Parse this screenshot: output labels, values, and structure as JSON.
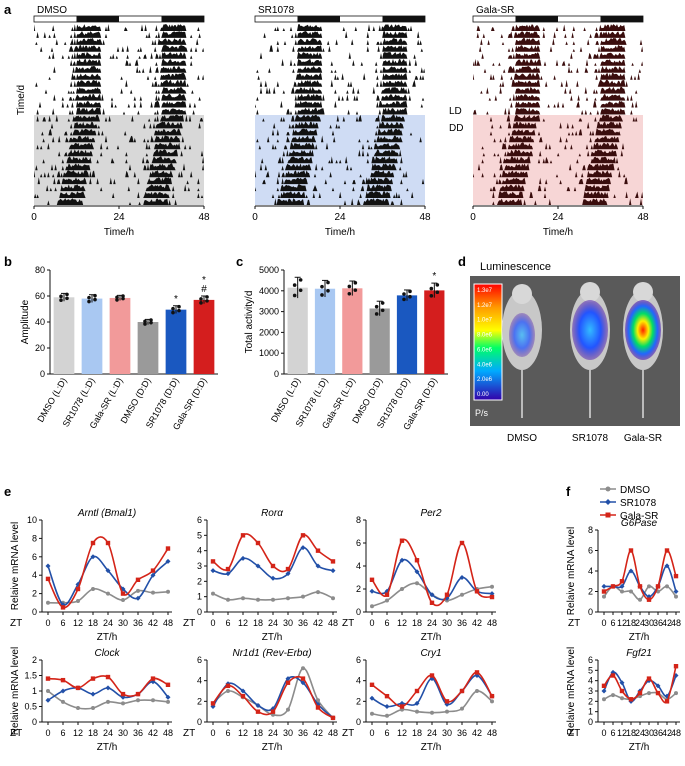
{
  "panel_letters": {
    "a": "a",
    "b": "b",
    "c": "c",
    "d": "d",
    "e": "e",
    "f": "f"
  },
  "actograms": {
    "ylabel": "Time/d",
    "xlabel": "Time/h",
    "ticks": [
      "0",
      "24",
      "48"
    ],
    "ld_label": "LD",
    "dd_label": "DD",
    "groups": [
      {
        "title": "DMSO",
        "tint": "#d8d8d8",
        "ink": "#111111"
      },
      {
        "title": "SR1078",
        "tint": "#cfdcf4",
        "ink": "#111111"
      },
      {
        "title": "Gala-SR",
        "tint": "#f7d6d6",
        "ink": "#3a0d0d"
      }
    ]
  },
  "colors": {
    "DMSO": "#8c8c8c",
    "SR1078": "#2250a8",
    "Gala-SR": "#d42418"
  },
  "legend": [
    "DMSO",
    "SR1078",
    "Gala-SR"
  ],
  "luminescence": {
    "title": "Luminescence",
    "scale_ticks": [
      "1.3e7",
      "1.2e7",
      "1.0e7",
      "8.0e6",
      "6.0e6",
      "4.0e6",
      "2.0e6",
      "0.00"
    ],
    "unit": "P/s",
    "mice": [
      "DMSO",
      "SR1078",
      "Gala-SR"
    ]
  },
  "chart_data": [
    {
      "id": "b",
      "type": "bar",
      "ylabel": "Amplitude",
      "ylim": [
        0,
        80
      ],
      "yticks": [
        "0",
        "20",
        "40",
        "60",
        "80"
      ],
      "categories": [
        "DMSO (L:D)",
        "SR1078 (L:D)",
        "Gala-SR (L:D)",
        "DMSO (D:D)",
        "SR1078 (D:D)",
        "Gala-SR (D:D)"
      ],
      "values": [
        59,
        58,
        58.5,
        40,
        49.5,
        57
      ],
      "errors": [
        3,
        3,
        2,
        2,
        3,
        3
      ],
      "bar_colors": [
        "#d3d3d3",
        "#a9c8f2",
        "#f29a9a",
        "#9a9a9a",
        "#1a58c0",
        "#d41e1e"
      ],
      "annotations": [
        "",
        "",
        "",
        "",
        "*",
        "*\n#"
      ]
    },
    {
      "id": "c",
      "type": "bar",
      "ylabel": "Total activity/d",
      "ylim": [
        0,
        5000
      ],
      "yticks": [
        "0",
        "1000",
        "2000",
        "3000",
        "4000",
        "5000"
      ],
      "categories": [
        "DMSO (L:D)",
        "SR1078 (L:D)",
        "Gala-SR (L:D)",
        "DMSO (D:D)",
        "SR1078 (D:D)",
        "Gala-SR (D:D)"
      ],
      "values": [
        4150,
        4100,
        4120,
        3150,
        3780,
        4020
      ],
      "errors": [
        500,
        400,
        350,
        350,
        260,
        350
      ],
      "bar_colors": [
        "#d3d3d3",
        "#a9c8f2",
        "#f29a9a",
        "#9a9a9a",
        "#1a58c0",
        "#d41e1e"
      ],
      "annotations": [
        "",
        "",
        "",
        "",
        "",
        "*"
      ]
    },
    {
      "id": "e1",
      "type": "line",
      "title": "Arntl (Bmal1)",
      "ylabel": "Relaive mRNA level",
      "xlabel": "ZT/h",
      "ylim": [
        0,
        10
      ],
      "yticks": [
        "0",
        "2",
        "4",
        "6",
        "8",
        "10"
      ],
      "x": [
        0,
        6,
        12,
        18,
        24,
        30,
        36,
        42,
        48
      ],
      "series": [
        {
          "name": "DMSO",
          "values": [
            1.0,
            1.0,
            1.2,
            2.5,
            2.0,
            1.3,
            2.3,
            2.1,
            2.2
          ]
        },
        {
          "name": "SR1078",
          "values": [
            5.0,
            0.8,
            3.0,
            6.0,
            4.5,
            2.5,
            1.5,
            4.0,
            5.5
          ]
        },
        {
          "name": "Gala-SR",
          "values": [
            3.6,
            0.5,
            2.5,
            7.5,
            7.5,
            2.0,
            3.5,
            4.5,
            6.9
          ]
        }
      ]
    },
    {
      "id": "e2",
      "type": "line",
      "title": "Rorα",
      "ylabel": "",
      "xlabel": "ZT/h",
      "ylim": [
        0,
        6
      ],
      "yticks": [
        "0",
        "1",
        "2",
        "3",
        "4",
        "5",
        "6"
      ],
      "x": [
        0,
        6,
        12,
        18,
        24,
        30,
        36,
        42,
        48
      ],
      "series": [
        {
          "name": "DMSO",
          "values": [
            1.2,
            0.8,
            0.9,
            0.8,
            0.8,
            0.9,
            1.0,
            1.3,
            0.9
          ]
        },
        {
          "name": "SR1078",
          "values": [
            2.7,
            2.5,
            3.5,
            3.0,
            2.2,
            2.5,
            4.2,
            3.0,
            2.7
          ]
        },
        {
          "name": "Gala-SR",
          "values": [
            3.3,
            2.8,
            5.0,
            4.5,
            3.0,
            2.8,
            5.0,
            4.0,
            3.3
          ]
        }
      ]
    },
    {
      "id": "e3",
      "type": "line",
      "title": "Per2",
      "ylabel": "",
      "xlabel": "ZT/h",
      "ylim": [
        0,
        8
      ],
      "yticks": [
        "0",
        "2",
        "4",
        "6",
        "8"
      ],
      "x": [
        0,
        6,
        12,
        18,
        24,
        30,
        36,
        42,
        48
      ],
      "series": [
        {
          "name": "DMSO",
          "values": [
            0.5,
            1.0,
            2.0,
            2.5,
            1.5,
            1.0,
            1.5,
            2.0,
            2.2
          ]
        },
        {
          "name": "SR1078",
          "values": [
            1.8,
            1.8,
            4.5,
            3.5,
            1.5,
            1.2,
            3.0,
            1.8,
            1.6
          ]
        },
        {
          "name": "Gala-SR",
          "values": [
            2.8,
            1.5,
            6.2,
            4.5,
            0.8,
            1.5,
            6.0,
            1.8,
            1.3
          ]
        }
      ]
    },
    {
      "id": "e4",
      "type": "line",
      "title": "Clock",
      "ylabel": "Relaive mRNA level",
      "xlabel": "ZT/h",
      "ylim": [
        0,
        2
      ],
      "yticks": [
        "0",
        "0.5",
        "1",
        "1.5",
        "2"
      ],
      "x": [
        0,
        6,
        12,
        18,
        24,
        30,
        36,
        42,
        48
      ],
      "series": [
        {
          "name": "DMSO",
          "values": [
            1.0,
            0.65,
            0.45,
            0.45,
            0.65,
            0.6,
            0.7,
            0.7,
            0.65
          ]
        },
        {
          "name": "SR1078",
          "values": [
            0.7,
            1.0,
            1.1,
            0.9,
            1.1,
            0.8,
            0.9,
            1.3,
            0.8
          ]
        },
        {
          "name": "Gala-SR",
          "values": [
            1.4,
            1.35,
            1.1,
            1.4,
            1.45,
            0.9,
            0.9,
            1.4,
            1.2
          ]
        }
      ]
    },
    {
      "id": "e5",
      "type": "line",
      "title": "Nr1d1 (Rev-Erbα)",
      "ylabel": "",
      "xlabel": "ZT/h",
      "ylim": [
        0,
        6
      ],
      "yticks": [
        "0",
        "2",
        "4",
        "6"
      ],
      "x": [
        0,
        6,
        12,
        18,
        24,
        30,
        36,
        42,
        48
      ],
      "series": [
        {
          "name": "DMSO",
          "values": [
            1.8,
            3.0,
            2.4,
            1.6,
            0.7,
            1.2,
            5.2,
            2.1,
            0.4
          ]
        },
        {
          "name": "SR1078",
          "values": [
            1.5,
            3.7,
            3.0,
            1.6,
            1.3,
            4.2,
            3.8,
            1.7,
            0.4
          ]
        },
        {
          "name": "Gala-SR",
          "values": [
            1.8,
            3.5,
            2.5,
            1.0,
            1.0,
            3.8,
            4.2,
            1.4,
            0.4
          ]
        }
      ]
    },
    {
      "id": "e6",
      "type": "line",
      "title": "Cry1",
      "ylabel": "",
      "xlabel": "ZT/h",
      "ylim": [
        0,
        6
      ],
      "yticks": [
        "0",
        "2",
        "4",
        "6"
      ],
      "x": [
        0,
        6,
        12,
        18,
        24,
        30,
        36,
        42,
        48
      ],
      "series": [
        {
          "name": "DMSO",
          "values": [
            0.8,
            0.6,
            1.2,
            1.0,
            0.9,
            1.0,
            1.3,
            3.0,
            2.0
          ]
        },
        {
          "name": "SR1078",
          "values": [
            2.3,
            1.5,
            1.8,
            1.8,
            4.2,
            1.7,
            3.0,
            4.5,
            2.5
          ]
        },
        {
          "name": "Gala-SR",
          "values": [
            3.6,
            2.5,
            1.5,
            3.0,
            4.5,
            2.0,
            3.0,
            4.8,
            2.5
          ]
        }
      ]
    },
    {
      "id": "f1",
      "type": "line",
      "title": "G6Pase",
      "ylabel": "Relaive mRNA level",
      "xlabel": "ZT/h",
      "ylim": [
        0,
        8
      ],
      "yticks": [
        "0",
        "2",
        "4",
        "6",
        "8"
      ],
      "x": [
        0,
        6,
        12,
        18,
        24,
        30,
        36,
        42,
        48
      ],
      "series": [
        {
          "name": "DMSO",
          "values": [
            1.5,
            2.5,
            2.0,
            2.0,
            1.2,
            2.5,
            2.0,
            2.5,
            1.5
          ]
        },
        {
          "name": "SR1078",
          "values": [
            2.5,
            2.5,
            2.5,
            4.0,
            2.5,
            1.5,
            2.5,
            4.5,
            2.0
          ]
        },
        {
          "name": "Gala-SR",
          "values": [
            2.0,
            2.5,
            3.0,
            6.0,
            2.5,
            1.2,
            2.5,
            6.0,
            3.5
          ]
        }
      ]
    },
    {
      "id": "f2",
      "type": "line",
      "title": "Fgf21",
      "ylabel": "Relaive mRNA level",
      "xlabel": "ZT/h",
      "ylim": [
        0,
        6
      ],
      "yticks": [
        "0",
        "1",
        "2",
        "3",
        "4",
        "5",
        "6"
      ],
      "x": [
        0,
        6,
        12,
        18,
        24,
        30,
        36,
        42,
        48
      ],
      "series": [
        {
          "name": "DMSO",
          "values": [
            2.2,
            2.6,
            2.3,
            2.2,
            2.5,
            2.8,
            2.8,
            2.2,
            2.8
          ]
        },
        {
          "name": "SR1078",
          "values": [
            3.0,
            4.8,
            3.8,
            2.0,
            3.0,
            4.0,
            3.5,
            2.5,
            4.5
          ]
        },
        {
          "name": "Gala-SR",
          "values": [
            3.5,
            4.5,
            3.0,
            2.2,
            2.8,
            4.2,
            2.8,
            2.0,
            5.4
          ]
        }
      ]
    }
  ]
}
